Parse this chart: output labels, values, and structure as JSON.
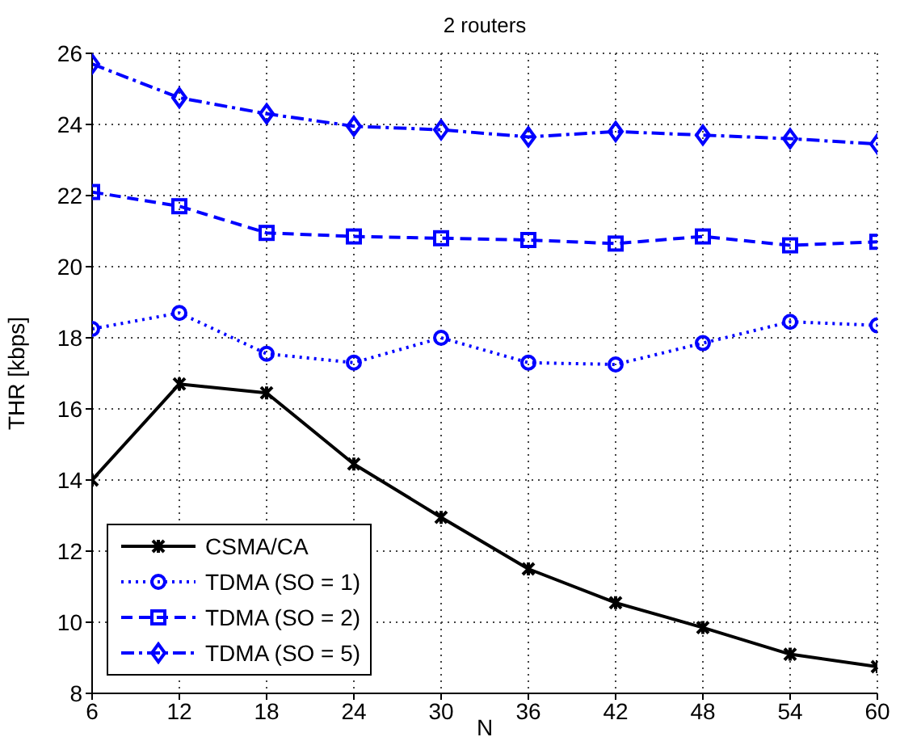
{
  "chart_data": {
    "type": "line",
    "title": "2 routers",
    "xlabel": "N",
    "ylabel": "THR [kbps]",
    "x": [
      6,
      12,
      18,
      24,
      30,
      36,
      42,
      48,
      54,
      60
    ],
    "xlim": [
      6,
      60
    ],
    "xticks": [
      6,
      12,
      18,
      24,
      30,
      36,
      42,
      48,
      54,
      60
    ],
    "ylim": [
      8,
      26
    ],
    "yticks": [
      8,
      10,
      12,
      14,
      16,
      18,
      20,
      22,
      24,
      26
    ],
    "grid": true,
    "legend": "bottom left",
    "series": [
      {
        "name": "CSMA/CA",
        "color": "#000000",
        "marker": "cross",
        "line_style": "solid",
        "values": [
          14.0,
          16.7,
          16.45,
          14.45,
          12.95,
          11.5,
          10.55,
          9.85,
          9.1,
          8.75
        ]
      },
      {
        "name": "TDMA (SO = 1)",
        "color": "#0000ff",
        "marker": "circle",
        "line_style": "dotted",
        "values": [
          18.25,
          18.7,
          17.55,
          17.3,
          18.0,
          17.3,
          17.25,
          17.85,
          18.45,
          18.35
        ]
      },
      {
        "name": "TDMA (SO = 2)",
        "color": "#0000ff",
        "marker": "square",
        "line_style": "dashed",
        "values": [
          22.1,
          21.7,
          20.95,
          20.85,
          20.8,
          20.75,
          20.65,
          20.85,
          20.6,
          20.7
        ]
      },
      {
        "name": "TDMA (SO = 5)",
        "color": "#0000ff",
        "marker": "diamond",
        "line_style": "dashdot",
        "values": [
          25.7,
          24.75,
          24.3,
          23.95,
          23.85,
          23.65,
          23.8,
          23.7,
          23.6,
          23.45
        ]
      }
    ]
  }
}
